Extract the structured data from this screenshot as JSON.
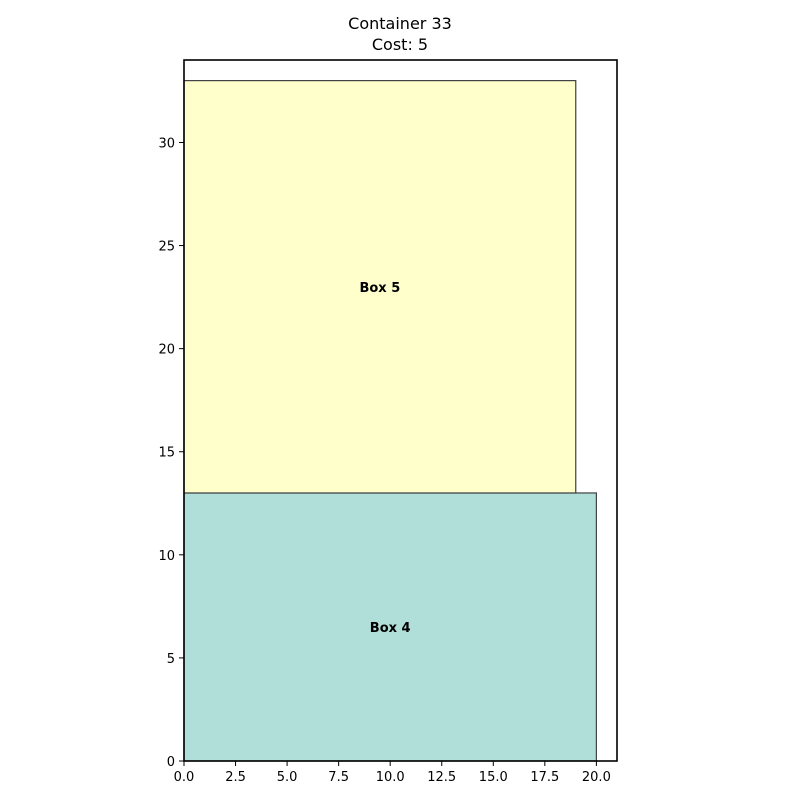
{
  "chart_data": {
    "type": "rectangles",
    "title": "Container 33",
    "subtitle": "Cost: 5",
    "xlabel": "",
    "ylabel": "",
    "xlim": [
      0,
      21
    ],
    "ylim": [
      0,
      34
    ],
    "grid": false,
    "x_ticks": [
      0.0,
      2.5,
      5.0,
      7.5,
      10.0,
      12.5,
      15.0,
      17.5,
      20.0
    ],
    "x_tick_labels": [
      "0.0",
      "2.5",
      "5.0",
      "7.5",
      "10.0",
      "12.5",
      "15.0",
      "17.5",
      "20.0"
    ],
    "y_ticks": [
      0,
      5,
      10,
      15,
      20,
      25,
      30
    ],
    "y_tick_labels": [
      "0",
      "5",
      "10",
      "15",
      "20",
      "25",
      "30"
    ],
    "boxes": [
      {
        "label": "Box 4",
        "x": 0,
        "y": 0,
        "width": 20,
        "height": 13,
        "color": "#b0dfd9"
      },
      {
        "label": "Box 5",
        "x": 0,
        "y": 13,
        "width": 19,
        "height": 20,
        "color": "#ffffcc"
      }
    ],
    "colors": {
      "edge": "#404040",
      "axes": "#000000"
    }
  }
}
